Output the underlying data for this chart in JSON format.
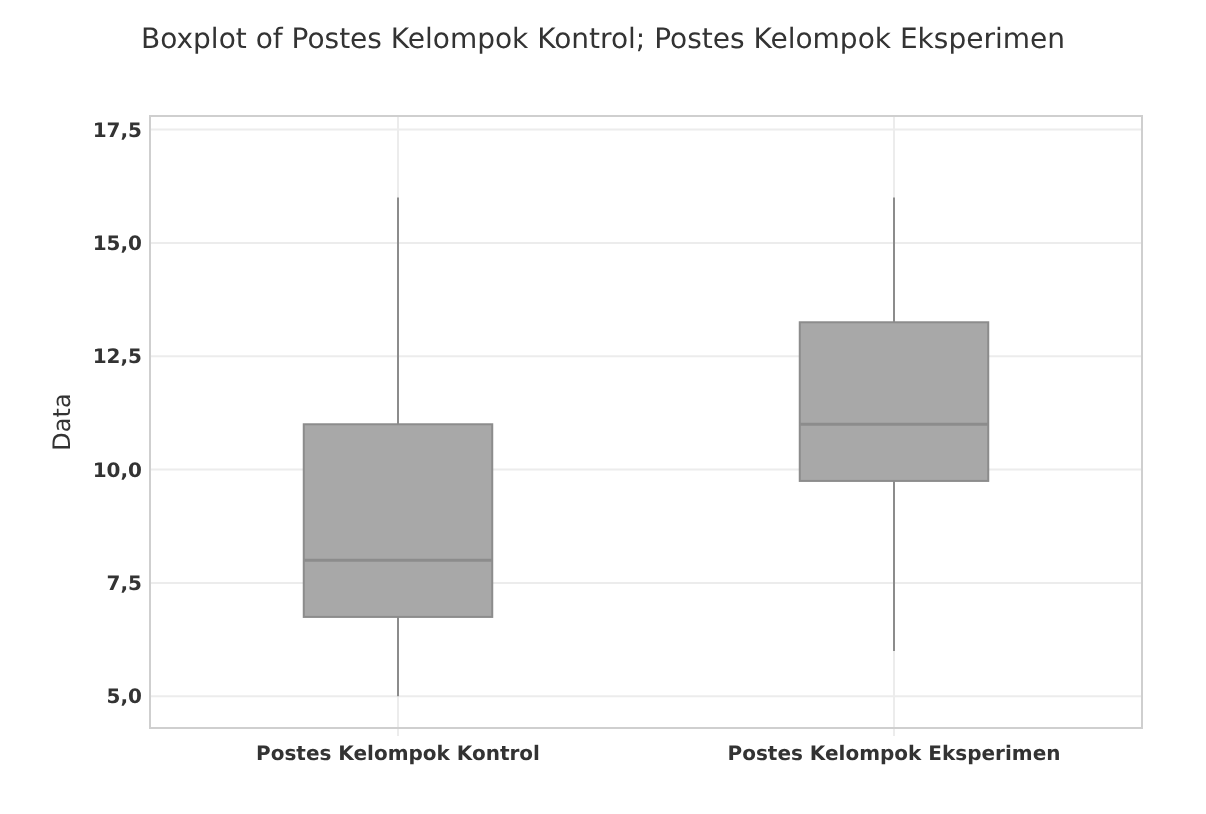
{
  "chart_data": {
    "type": "box",
    "title": "Boxplot of Postes Kelompok Kontrol; Postes Kelompok Eksperimen",
    "ylabel": "Data",
    "categories": [
      "Postes Kelompok Kontrol",
      "Postes Kelompok Eksperimen"
    ],
    "boxes": [
      {
        "low": 5,
        "q1": 6.75,
        "median": 8,
        "q3": 11,
        "high": 16
      },
      {
        "low": 6,
        "q1": 9.75,
        "median": 11,
        "q3": 13.25,
        "high": 16
      }
    ],
    "color": "#a8a8a8",
    "ylim": [
      4.3,
      17.8
    ],
    "yticks": [
      {
        "value": 5,
        "label": "5,0"
      },
      {
        "value": 7.5,
        "label": "7,5"
      },
      {
        "value": 10,
        "label": "10,0"
      },
      {
        "value": 12.5,
        "label": "12,5"
      },
      {
        "value": 15,
        "label": "15,0"
      },
      {
        "value": 17.5,
        "label": "17,5"
      }
    ],
    "grid": true
  }
}
